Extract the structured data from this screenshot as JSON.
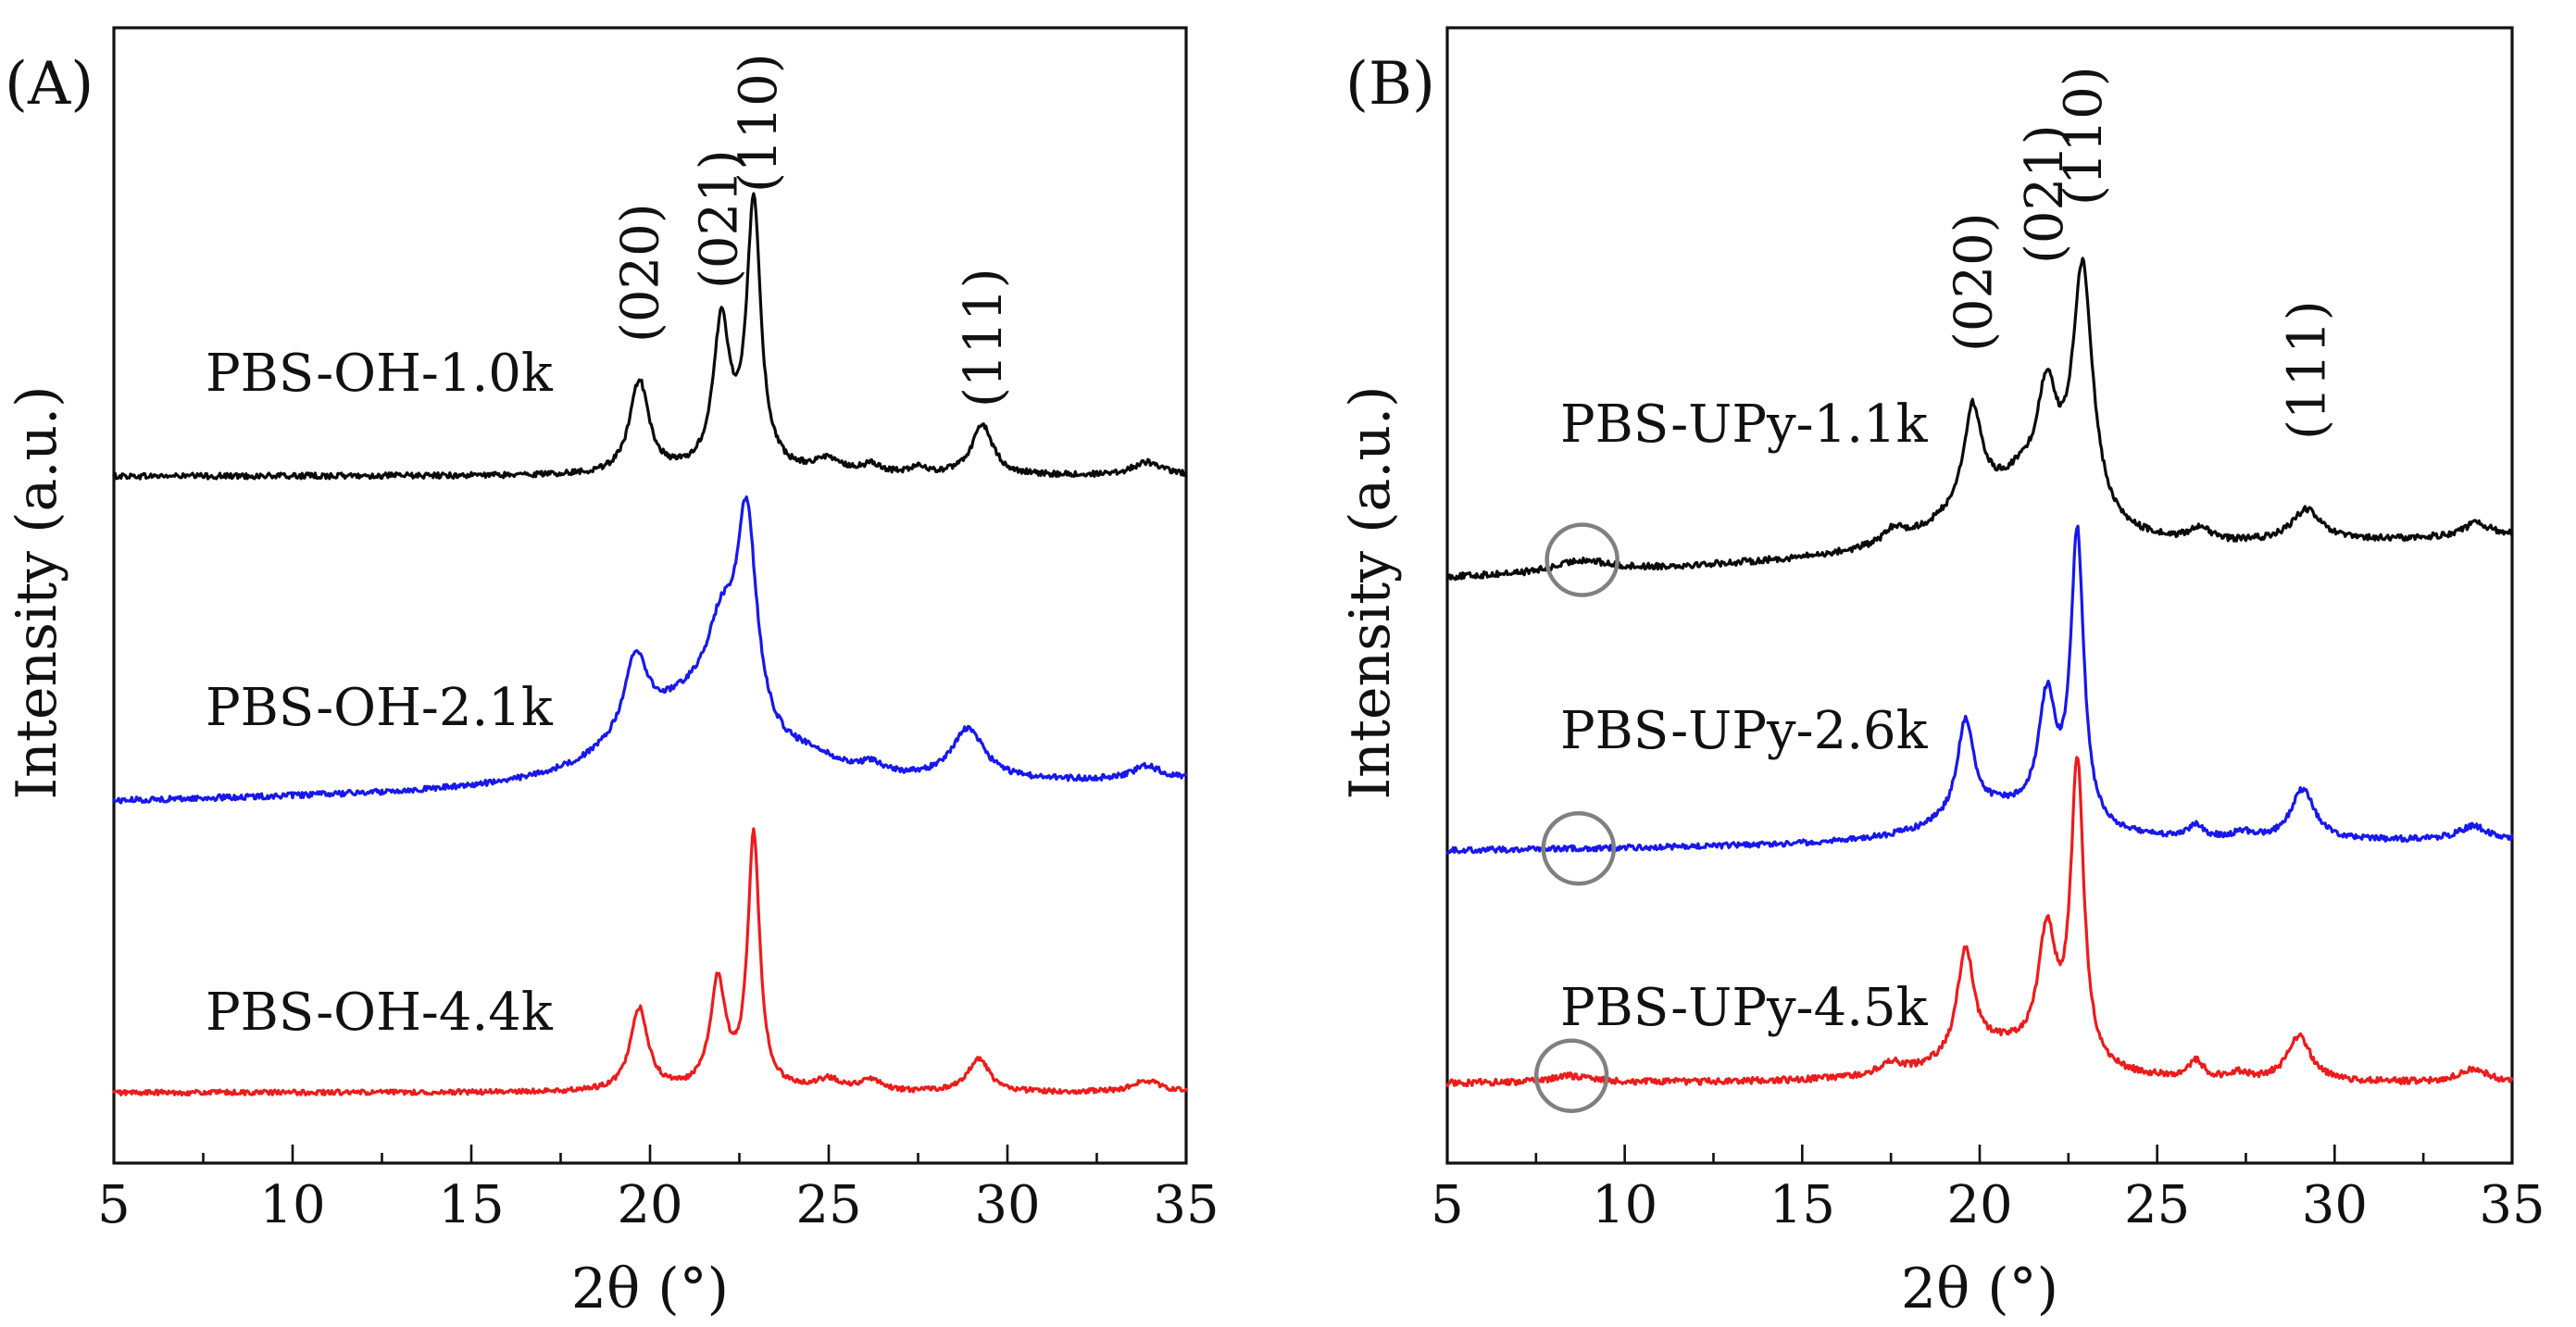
{
  "colors": {
    "black": "#0a0a0a",
    "blue": "#1717ee",
    "red": "#ee1b1b",
    "circle": "#808080"
  },
  "chart_data": [
    {
      "type": "line",
      "panel_label": "(A)",
      "xlabel": "2θ (°)",
      "ylabel": "Intensity (a.u.)",
      "xlim": [
        5,
        35
      ],
      "ylim": [
        0,
        1
      ],
      "xticks": [
        5,
        10,
        15,
        20,
        25,
        30,
        35
      ],
      "xtick_labels": [
        "5",
        "10",
        "15",
        "20",
        "25",
        "30",
        "35"
      ],
      "grid": false,
      "series": [
        {
          "name": "PBS-OH-1.0k",
          "color": "black",
          "baseline": 0.605,
          "slope": 0.0,
          "noise": 0.0025,
          "peaks": [
            [
              19.7,
              0.082,
              0.32
            ],
            [
              22.0,
              0.13,
              0.28
            ],
            [
              22.9,
              0.235,
              0.24
            ],
            [
              25.0,
              0.012,
              0.5
            ],
            [
              26.2,
              0.008,
              0.3
            ],
            [
              27.5,
              0.006,
              0.3
            ],
            [
              29.3,
              0.045,
              0.35
            ],
            [
              33.9,
              0.012,
              0.5
            ]
          ]
        },
        {
          "name": "PBS-OH-2.1k",
          "color": "blue",
          "baseline": 0.318,
          "slope": 0.0006,
          "noise": 0.0025,
          "peaks": [
            [
              19.6,
              0.068,
              0.38
            ],
            [
              21.6,
              0.035,
              1.2
            ],
            [
              22.0,
              0.065,
              0.45
            ],
            [
              22.7,
              0.19,
              0.35
            ],
            [
              20.5,
              0.05,
              2.2
            ],
            [
              24.5,
              0.012,
              1.0
            ],
            [
              26.2,
              0.008,
              0.4
            ],
            [
              28.9,
              0.045,
              0.55
            ],
            [
              33.9,
              0.012,
              0.5
            ]
          ]
        },
        {
          "name": "PBS-OH-4.4k",
          "color": "red",
          "baseline": 0.062,
          "slope": 0.0,
          "noise": 0.0022,
          "peaks": [
            [
              19.7,
              0.073,
              0.3
            ],
            [
              21.9,
              0.095,
              0.26
            ],
            [
              22.9,
              0.225,
              0.2
            ],
            [
              25.0,
              0.01,
              0.5
            ],
            [
              26.2,
              0.01,
              0.3
            ],
            [
              29.2,
              0.03,
              0.35
            ],
            [
              33.9,
              0.01,
              0.5
            ]
          ]
        }
      ],
      "annotations": [
        {
          "text": "(020)",
          "x": 19.7
        },
        {
          "text": "(021)",
          "x": 21.9
        },
        {
          "text": "(110)",
          "x": 23.0
        },
        {
          "text": "(111)",
          "x": 29.3
        }
      ],
      "series_labels": [
        "PBS-OH-1.0k",
        "PBS-OH-2.1k",
        "PBS-OH-4.4k"
      ]
    },
    {
      "type": "line",
      "panel_label": "(B)",
      "xlabel": "2θ (°)",
      "ylabel": "Intensity (a.u.)",
      "xlim": [
        5,
        35
      ],
      "ylim": [
        0,
        1
      ],
      "xticks": [
        5,
        10,
        15,
        20,
        25,
        30,
        35
      ],
      "xtick_labels": [
        "5",
        "10",
        "15",
        "20",
        "25",
        "30",
        "35"
      ],
      "grid": false,
      "series": [
        {
          "name": "PBS-UPy-1.1k",
          "color": "black",
          "baseline": 0.515,
          "slope": 0.0012,
          "noise": 0.0028,
          "peaks": [
            [
              8.8,
              0.01,
              0.8
            ],
            [
              17.6,
              0.012,
              0.35
            ],
            [
              19.8,
              0.085,
              0.3
            ],
            [
              21.2,
              0.015,
              0.5
            ],
            [
              21.9,
              0.1,
              0.35
            ],
            [
              22.9,
              0.225,
              0.35
            ],
            [
              20.5,
              0.05,
              2.0
            ],
            [
              26.2,
              0.012,
              0.3
            ],
            [
              29.2,
              0.028,
              0.5
            ],
            [
              34.0,
              0.012,
              0.5
            ]
          ]
        },
        {
          "name": "PBS-UPy-2.6k",
          "color": "blue",
          "baseline": 0.275,
          "slope": 0.0003,
          "noise": 0.0025,
          "peaks": [
            [
              19.6,
              0.085,
              0.28
            ],
            [
              21.9,
              0.105,
              0.3
            ],
            [
              22.75,
              0.255,
              0.22
            ],
            [
              20.5,
              0.03,
              2.0
            ],
            [
              26.1,
              0.012,
              0.25
            ],
            [
              27.4,
              0.006,
              0.3
            ],
            [
              29.1,
              0.045,
              0.4
            ],
            [
              33.9,
              0.012,
              0.5
            ]
          ]
        },
        {
          "name": "PBS-UPy-4.5k",
          "color": "red",
          "baseline": 0.07,
          "slope": 0.0,
          "noise": 0.0028,
          "peaks": [
            [
              8.5,
              0.006,
              0.7
            ],
            [
              17.5,
              0.01,
              0.4
            ],
            [
              19.6,
              0.095,
              0.28
            ],
            [
              21.9,
              0.11,
              0.3
            ],
            [
              22.75,
              0.265,
              0.22
            ],
            [
              20.6,
              0.03,
              1.8
            ],
            [
              26.1,
              0.015,
              0.25
            ],
            [
              27.3,
              0.006,
              0.3
            ],
            [
              29.0,
              0.04,
              0.4
            ],
            [
              33.9,
              0.012,
              0.5
            ]
          ]
        }
      ],
      "annotations": [
        {
          "text": "(020)",
          "x": 19.8
        },
        {
          "text": "(021)",
          "x": 21.8
        },
        {
          "text": "(110)",
          "x": 22.9
        },
        {
          "text": "(111)",
          "x": 29.2
        }
      ],
      "series_labels": [
        "PBS-UPy-1.1k",
        "PBS-UPy-2.6k",
        "PBS-UPy-4.5k"
      ],
      "circled_points": [
        [
          8.8,
          "black"
        ],
        [
          8.7,
          "blue"
        ],
        [
          8.5,
          "red"
        ]
      ]
    }
  ]
}
